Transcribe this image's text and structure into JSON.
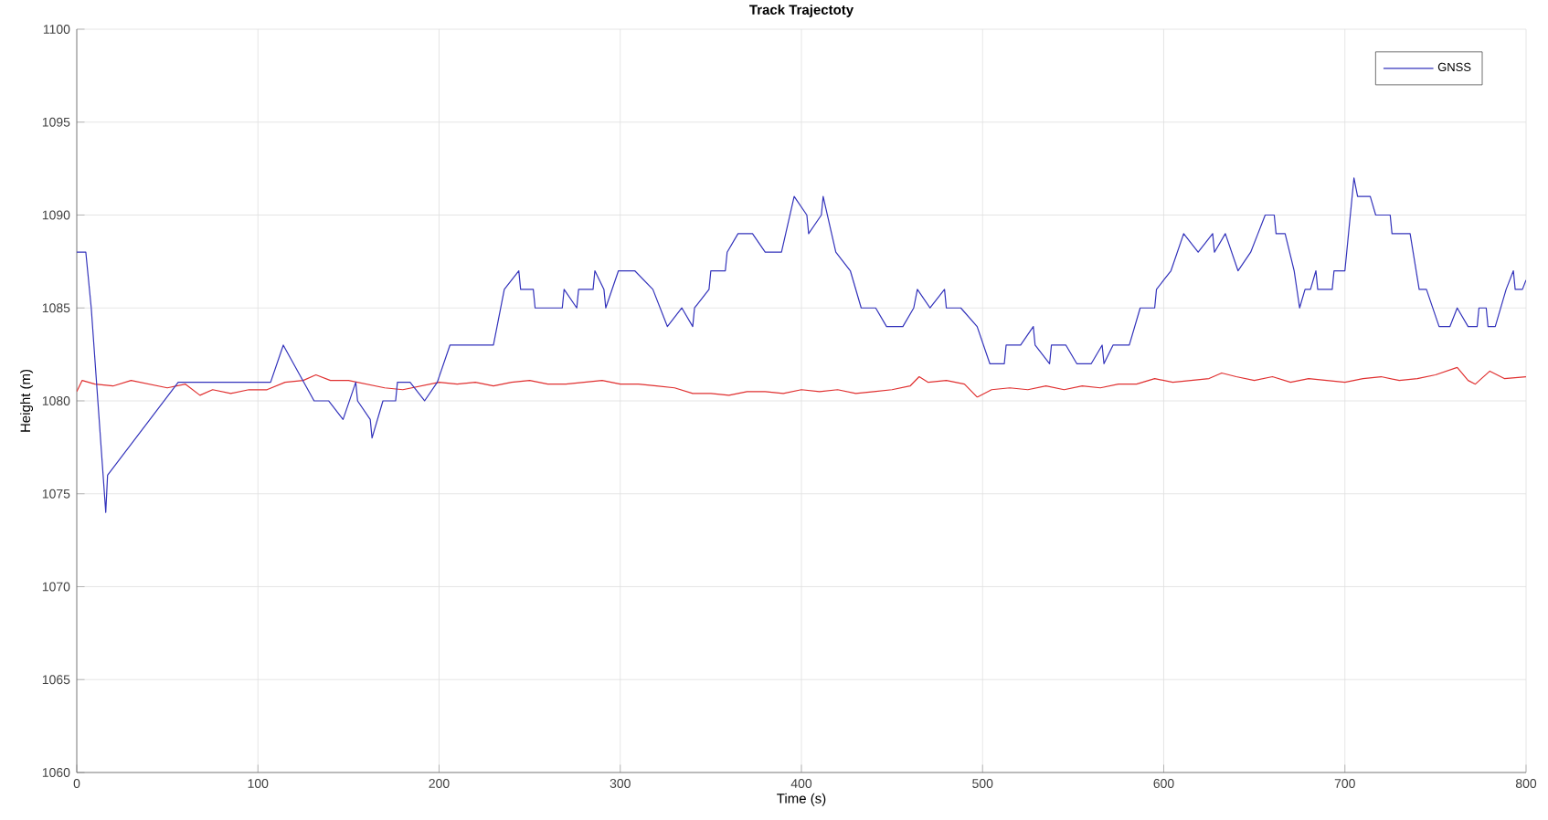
{
  "chart_data": {
    "type": "line",
    "title": "Track Trajectoty",
    "xlabel": "Time (s)",
    "ylabel": "Height (m)",
    "xlim": [
      0,
      800
    ],
    "ylim": [
      1060,
      1100
    ],
    "xticks": [
      0,
      100,
      200,
      300,
      400,
      500,
      600,
      700,
      800
    ],
    "yticks": [
      1060,
      1065,
      1070,
      1075,
      1080,
      1085,
      1090,
      1095,
      1100
    ],
    "grid": true,
    "legend": "top right",
    "marker": "none",
    "line_style": "solid",
    "series": [
      {
        "color": "#e03030",
        "x": [
          0,
          3,
          10,
          20,
          30,
          40,
          50,
          60,
          68,
          75,
          85,
          95,
          105,
          115,
          125,
          132,
          140,
          150,
          160,
          170,
          180,
          190,
          200,
          210,
          220,
          230,
          240,
          250,
          260,
          270,
          280,
          290,
          300,
          310,
          320,
          330,
          340,
          350,
          360,
          370,
          380,
          390,
          400,
          410,
          420,
          430,
          440,
          450,
          460,
          465,
          470,
          480,
          490,
          497,
          505,
          515,
          525,
          535,
          545,
          555,
          565,
          575,
          585,
          595,
          605,
          615,
          625,
          632,
          640,
          650,
          660,
          670,
          680,
          690,
          700,
          710,
          720,
          730,
          740,
          750,
          762,
          768,
          772,
          780,
          788,
          800
        ],
        "values": [
          1080.5,
          1081.1,
          1080.9,
          1080.8,
          1081.1,
          1080.9,
          1080.7,
          1080.9,
          1080.3,
          1080.6,
          1080.4,
          1080.6,
          1080.6,
          1081,
          1081.1,
          1081.4,
          1081.1,
          1081.1,
          1080.9,
          1080.7,
          1080.6,
          1080.8,
          1081,
          1080.9,
          1081,
          1080.8,
          1081,
          1081.1,
          1080.9,
          1080.9,
          1081,
          1081.1,
          1080.9,
          1080.9,
          1080.8,
          1080.7,
          1080.4,
          1080.4,
          1080.3,
          1080.5,
          1080.5,
          1080.4,
          1080.6,
          1080.5,
          1080.6,
          1080.4,
          1080.5,
          1080.6,
          1080.8,
          1081.3,
          1081,
          1081.1,
          1080.9,
          1080.2,
          1080.6,
          1080.7,
          1080.6,
          1080.8,
          1080.6,
          1080.8,
          1080.7,
          1080.9,
          1080.9,
          1081.2,
          1081,
          1081.1,
          1081.2,
          1081.5,
          1081.3,
          1081.1,
          1081.3,
          1081,
          1081.2,
          1081.1,
          1081,
          1081.2,
          1081.3,
          1081.1,
          1081.2,
          1081.4,
          1081.8,
          1081.1,
          1080.9,
          1081.6,
          1081.2,
          1081.3
        ]
      },
      {
        "name": "GNSS",
        "color": "#3333bb",
        "x": [
          0,
          5,
          8,
          16,
          17,
          56,
          107,
          114,
          131,
          139,
          147,
          154,
          155,
          162,
          163,
          169,
          176,
          177,
          184,
          192,
          199,
          206,
          230,
          236,
          244,
          245,
          252,
          253,
          268,
          269,
          276,
          277,
          285,
          286,
          291,
          292,
          299,
          308,
          318,
          326,
          334,
          340,
          341,
          349,
          350,
          358,
          359,
          365,
          373,
          380,
          389,
          396,
          403,
          404,
          411,
          412,
          419,
          427,
          433,
          441,
          447,
          456,
          462,
          464,
          471,
          479,
          480,
          488,
          497,
          504,
          512,
          513,
          521,
          528,
          529,
          537,
          538,
          546,
          552,
          560,
          566,
          567,
          572,
          581,
          587,
          595,
          596,
          600,
          604,
          611,
          619,
          627,
          628,
          634,
          641,
          648,
          652,
          656,
          661,
          662,
          667,
          672,
          675,
          678,
          681,
          684,
          685,
          693,
          694,
          700,
          705,
          707,
          714,
          717,
          725,
          726,
          736,
          741,
          745,
          752,
          758,
          762,
          768,
          773,
          774,
          778,
          779,
          783,
          789,
          793,
          794,
          798,
          800
        ],
        "values": [
          1088,
          1088,
          1085,
          1074,
          1076,
          1081,
          1081,
          1083,
          1080,
          1080,
          1079,
          1081,
          1080,
          1079,
          1078,
          1080,
          1080,
          1081,
          1081,
          1080,
          1081,
          1083,
          1083,
          1086,
          1087,
          1086,
          1086,
          1085,
          1085,
          1086,
          1085,
          1086,
          1086,
          1087,
          1086,
          1085,
          1087,
          1087,
          1086,
          1084,
          1085,
          1084,
          1085,
          1086,
          1087,
          1087,
          1088,
          1089,
          1089,
          1088,
          1088,
          1091,
          1090,
          1089,
          1090,
          1091,
          1088,
          1087,
          1085,
          1085,
          1084,
          1084,
          1085,
          1086,
          1085,
          1086,
          1085,
          1085,
          1084,
          1082,
          1082,
          1083,
          1083,
          1084,
          1083,
          1082,
          1083,
          1083,
          1082,
          1082,
          1083,
          1082,
          1083,
          1083,
          1085,
          1085,
          1086,
          1086.5,
          1087,
          1089,
          1088,
          1089,
          1088,
          1089,
          1087,
          1088,
          1089,
          1090,
          1090,
          1089,
          1089,
          1087,
          1085,
          1086,
          1086,
          1087,
          1086,
          1086,
          1087,
          1087,
          1092,
          1091,
          1091,
          1090,
          1090,
          1089,
          1089,
          1086,
          1086,
          1084,
          1084,
          1085,
          1084,
          1084,
          1085,
          1085,
          1084,
          1084,
          1086,
          1087,
          1086,
          1086,
          1086.5
        ]
      }
    ]
  }
}
